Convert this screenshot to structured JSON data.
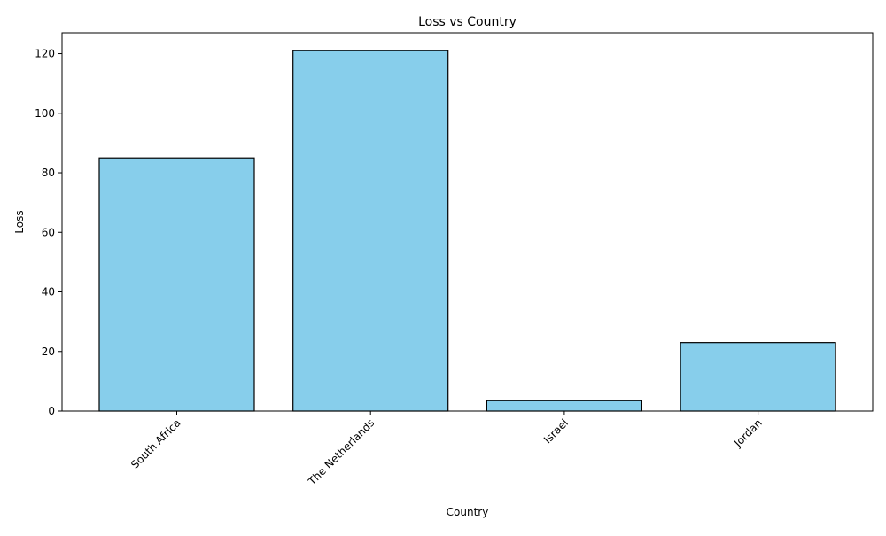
{
  "chart_data": {
    "type": "bar",
    "title": "Loss vs Country",
    "xlabel": "Country",
    "ylabel": "Loss",
    "categories": [
      "South Africa",
      "The Netherlands",
      "Israel",
      "Jordan"
    ],
    "values": [
      85,
      121,
      3.5,
      23
    ],
    "ylim": [
      0,
      127
    ],
    "yticks": [
      0,
      20,
      40,
      60,
      80,
      100,
      120
    ],
    "bar_color": "#87CEEB",
    "bar_edge_color": "#000000",
    "grid": false,
    "legend": "none"
  }
}
